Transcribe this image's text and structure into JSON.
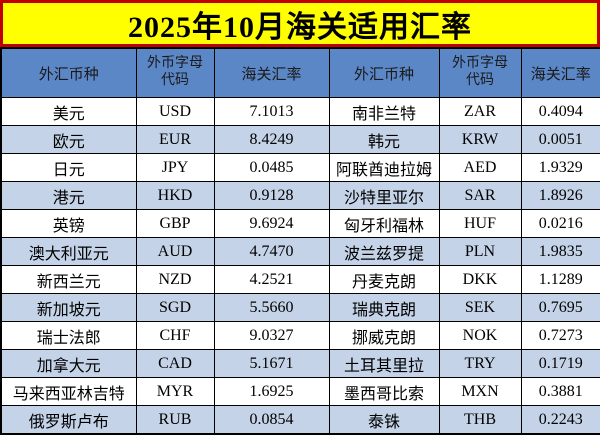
{
  "title": "2025年10月海关适用汇率",
  "header": {
    "currency": "外汇币种",
    "code": "外币字母\n代码",
    "rate": "海关汇率"
  },
  "styles": {
    "title_bg": "#FFFF00",
    "title_border": "#C00000",
    "header_bg": "#5B87C6",
    "stripe_bg": "#C4D3E8",
    "grid_color": "#000000"
  },
  "chart_data": {
    "type": "table",
    "title": "2025年10月海关适用汇率",
    "columns": [
      "外汇币种",
      "外币字母代码",
      "海关汇率",
      "外汇币种",
      "外币字母代码",
      "海关汇率"
    ],
    "rows": [
      [
        "美元",
        "USD",
        "7.1013",
        "南非兰特",
        "ZAR",
        "0.4094"
      ],
      [
        "欧元",
        "EUR",
        "8.4249",
        "韩元",
        "KRW",
        "0.0051"
      ],
      [
        "日元",
        "JPY",
        "0.0485",
        "阿联酋迪拉姆",
        "AED",
        "1.9329"
      ],
      [
        "港元",
        "HKD",
        "0.9128",
        "沙特里亚尔",
        "SAR",
        "1.8926"
      ],
      [
        "英镑",
        "GBP",
        "9.6924",
        "匈牙利福林",
        "HUF",
        "0.0216"
      ],
      [
        "澳大利亚元",
        "AUD",
        "4.7470",
        "波兰兹罗提",
        "PLN",
        "1.9835"
      ],
      [
        "新西兰元",
        "NZD",
        "4.2521",
        "丹麦克朗",
        "DKK",
        "1.1289"
      ],
      [
        "新加坡元",
        "SGD",
        "5.5660",
        "瑞典克朗",
        "SEK",
        "0.7695"
      ],
      [
        "瑞士法郎",
        "CHF",
        "9.0327",
        "挪威克朗",
        "NOK",
        "0.7273"
      ],
      [
        "加拿大元",
        "CAD",
        "5.1671",
        "土耳其里拉",
        "TRY",
        "0.1719"
      ],
      [
        "马来西亚林吉特",
        "MYR",
        "1.6925",
        "墨西哥比索",
        "MXN",
        "0.3881"
      ],
      [
        "俄罗斯卢布",
        "RUB",
        "0.0854",
        "泰铢",
        "THB",
        "0.2243"
      ]
    ]
  }
}
